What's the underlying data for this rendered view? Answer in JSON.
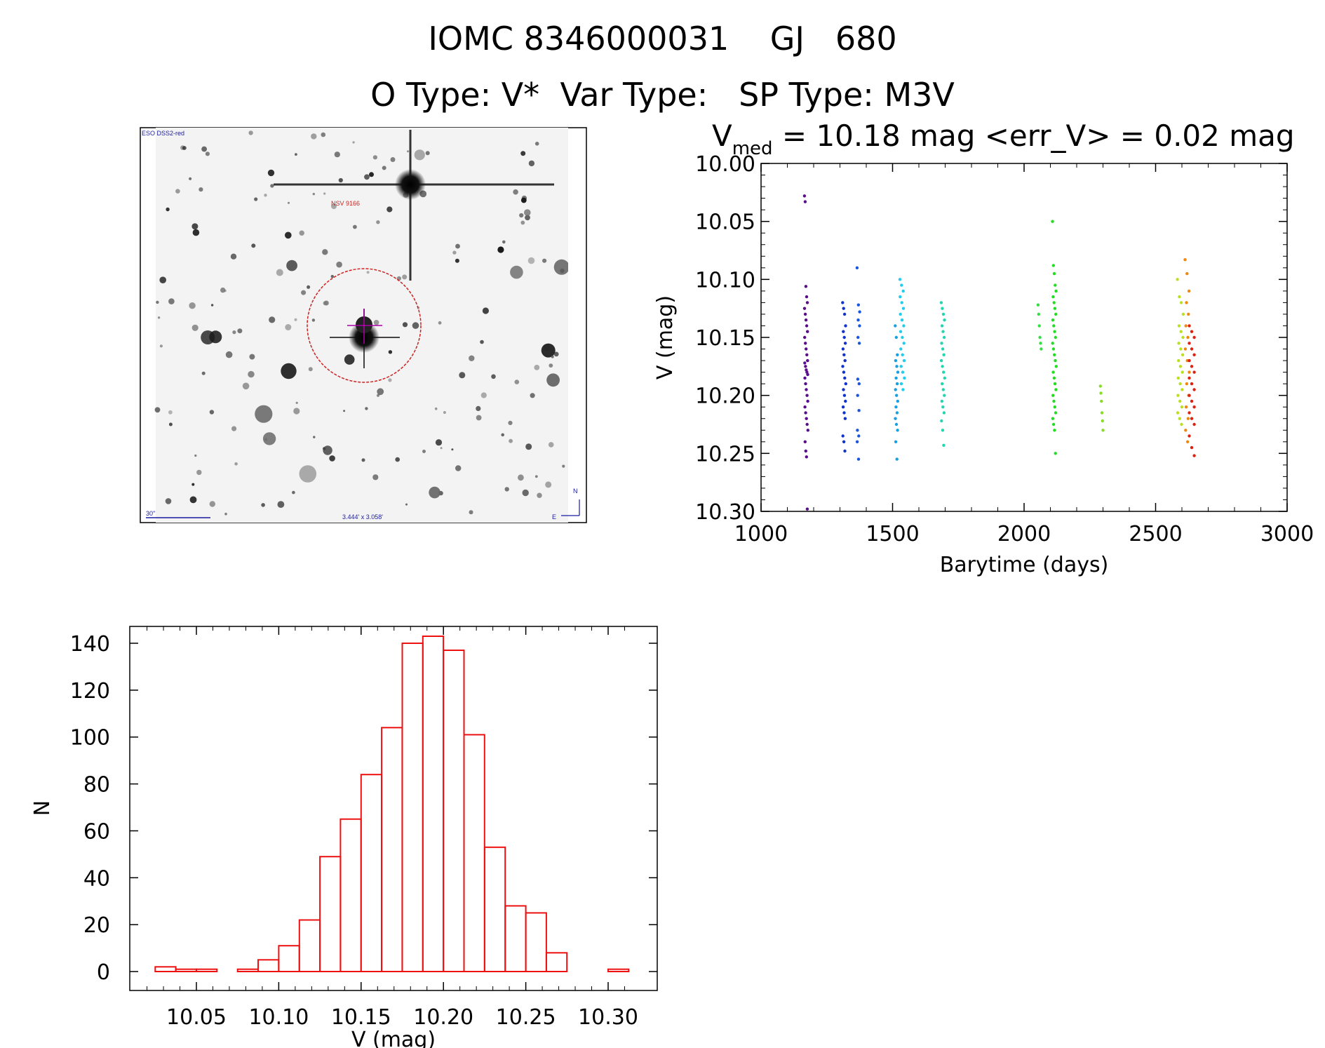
{
  "header": {
    "title_id": "IOMC 8346000031",
    "title_name": "GJ",
    "title_num": "680",
    "otype_label": "O Type:",
    "otype_value": "V*",
    "vartype_label": "Var Type:",
    "vartype_value": "",
    "sptype_label": "SP Type:",
    "sptype_value": "M3V"
  },
  "sky_image": {
    "survey_label": "ESO DSS2-red",
    "object_label": "NSV 9166",
    "scale_label": "30\"",
    "size_label": "3.444' x 3.058'",
    "north_label": "N",
    "east_label": "E",
    "colors": {
      "circle": "#cc2222",
      "crosshair": "#aa00aa",
      "text_blue": "#1a1aa0",
      "text_red": "#cc2222"
    }
  },
  "chart_data": [
    {
      "type": "scatter",
      "title_prefix": "V",
      "title_sub": "med",
      "title_rest": " = 10.18 mag <err_V> = 0.02 mag",
      "vmed": 10.18,
      "err_v": 0.02,
      "xlabel": "Barytime (days)",
      "ylabel": "V (mag)",
      "xlim": [
        1000,
        3000
      ],
      "ylim": [
        10.3,
        10.0
      ],
      "y_inverted": true,
      "xticks": [
        "1000",
        "1500",
        "2000",
        "2500",
        "3000"
      ],
      "yticks": [
        "10.00",
        "10.05",
        "10.10",
        "10.15",
        "10.20",
        "10.25",
        "10.30"
      ],
      "series": [
        {
          "name": "group-1170",
          "color": "#5a0d8a",
          "x_range": [
            1165,
            1178
          ],
          "y_points": [
            10.028,
            10.033,
            10.106,
            10.115,
            10.12,
            10.125,
            10.13,
            10.135,
            10.14,
            10.145,
            10.15,
            10.155,
            10.16,
            10.165,
            10.17,
            10.172,
            10.175,
            10.178,
            10.18,
            10.182,
            10.185,
            10.19,
            10.195,
            10.2,
            10.205,
            10.21,
            10.215,
            10.22,
            10.225,
            10.23,
            10.24,
            10.248,
            10.253,
            10.298
          ]
        },
        {
          "name": "group-1320",
          "color": "#1133cc",
          "x_range": [
            1310,
            1322
          ],
          "y_points": [
            10.12,
            10.125,
            10.13,
            10.14,
            10.145,
            10.15,
            10.155,
            10.16,
            10.165,
            10.17,
            10.175,
            10.18,
            10.185,
            10.19,
            10.195,
            10.2,
            10.205,
            10.21,
            10.215,
            10.22,
            10.235,
            10.24,
            10.248
          ]
        },
        {
          "name": "group-1370",
          "color": "#1a55dd",
          "x_range": [
            1365,
            1375
          ],
          "y_points": [
            10.09,
            10.122,
            10.128,
            10.135,
            10.14,
            10.15,
            10.155,
            10.186,
            10.19,
            10.2,
            10.213,
            10.23,
            10.235,
            10.24,
            10.255
          ]
        },
        {
          "name": "group-1515",
          "color": "#1aa0e0",
          "x_range": [
            1510,
            1520
          ],
          "y_points": [
            10.14,
            10.15,
            10.165,
            10.17,
            10.175,
            10.18,
            10.185,
            10.19,
            10.195,
            10.2,
            10.205,
            10.21,
            10.215,
            10.22,
            10.225,
            10.23,
            10.24,
            10.255
          ]
        },
        {
          "name": "group-1535",
          "color": "#22ccee",
          "x_range": [
            1528,
            1545
          ],
          "y_points": [
            10.1,
            10.105,
            10.11,
            10.115,
            10.12,
            10.125,
            10.13,
            10.135,
            10.14,
            10.145,
            10.15,
            10.155,
            10.16,
            10.165,
            10.17,
            10.175,
            10.18,
            10.185,
            10.19,
            10.195
          ]
        },
        {
          "name": "group-1690",
          "color": "#22d6b0",
          "x_range": [
            1685,
            1698
          ],
          "y_points": [
            10.12,
            10.125,
            10.13,
            10.135,
            10.14,
            10.145,
            10.15,
            10.155,
            10.16,
            10.165,
            10.17,
            10.175,
            10.18,
            10.185,
            10.19,
            10.195,
            10.2,
            10.205,
            10.21,
            10.215,
            10.222,
            10.23,
            10.243
          ]
        },
        {
          "name": "group-2060",
          "color": "#33dd44",
          "x_range": [
            2053,
            2065
          ],
          "y_points": [
            10.122,
            10.13,
            10.14,
            10.15,
            10.155,
            10.16
          ]
        },
        {
          "name": "group-2115",
          "color": "#22dd22",
          "x_range": [
            2108,
            2122
          ],
          "y_points": [
            10.05,
            10.088,
            10.095,
            10.105,
            10.11,
            10.115,
            10.12,
            10.125,
            10.13,
            10.135,
            10.14,
            10.145,
            10.15,
            10.155,
            10.16,
            10.165,
            10.17,
            10.175,
            10.18,
            10.185,
            10.19,
            10.195,
            10.2,
            10.205,
            10.21,
            10.215,
            10.22,
            10.225,
            10.23,
            10.25
          ]
        },
        {
          "name": "group-2295",
          "color": "#88dd22",
          "x_range": [
            2290,
            2300
          ],
          "y_points": [
            10.192,
            10.198,
            10.205,
            10.215,
            10.222,
            10.23
          ]
        },
        {
          "name": "group-2590",
          "color": "#bbe022",
          "x_range": [
            2583,
            2605
          ],
          "y_points": [
            10.1,
            10.115,
            10.12,
            10.13,
            10.14,
            10.145,
            10.15,
            10.155,
            10.16,
            10.165,
            10.17,
            10.175,
            10.18,
            10.185,
            10.19,
            10.195,
            10.2,
            10.205,
            10.21,
            10.215,
            10.22,
            10.225
          ]
        },
        {
          "name": "group-2620",
          "color": "#ee8811",
          "x_range": [
            2612,
            2628
          ],
          "y_points": [
            10.083,
            10.095,
            10.11,
            10.12,
            10.13,
            10.14,
            10.15,
            10.16,
            10.17,
            10.18,
            10.19,
            10.2,
            10.21,
            10.22,
            10.23,
            10.24
          ]
        },
        {
          "name": "group-2640",
          "color": "#dd2211",
          "x_range": [
            2628,
            2655
          ],
          "y_points": [
            10.14,
            10.145,
            10.15,
            10.155,
            10.16,
            10.165,
            10.17,
            10.175,
            10.18,
            10.185,
            10.19,
            10.195,
            10.2,
            10.205,
            10.21,
            10.215,
            10.22,
            10.225,
            10.235,
            10.245,
            10.252
          ]
        }
      ]
    },
    {
      "type": "bar",
      "subtype": "histogram",
      "xlabel": "V (mag)",
      "ylabel": "N",
      "xlim": [
        10.01,
        10.315
      ],
      "ylim": [
        0,
        150
      ],
      "xticks": [
        "10.05",
        "10.10",
        "10.15",
        "10.20",
        "10.25",
        "10.30"
      ],
      "yticks": [
        "0",
        "20",
        "40",
        "60",
        "80",
        "100",
        "120",
        "140"
      ],
      "bin_width": 0.0125,
      "bin_starts": [
        10.025,
        10.0375,
        10.05,
        10.0625,
        10.075,
        10.0875,
        10.1,
        10.1125,
        10.125,
        10.1375,
        10.15,
        10.1625,
        10.175,
        10.1875,
        10.2,
        10.2125,
        10.225,
        10.2375,
        10.25,
        10.2625,
        10.275,
        10.2875,
        10.3
      ],
      "values": [
        2,
        1,
        1,
        0,
        1,
        5,
        11,
        22,
        49,
        65,
        84,
        104,
        140,
        143,
        137,
        101,
        53,
        28,
        25,
        8,
        0,
        0,
        1
      ],
      "color": "#ee1111"
    }
  ]
}
